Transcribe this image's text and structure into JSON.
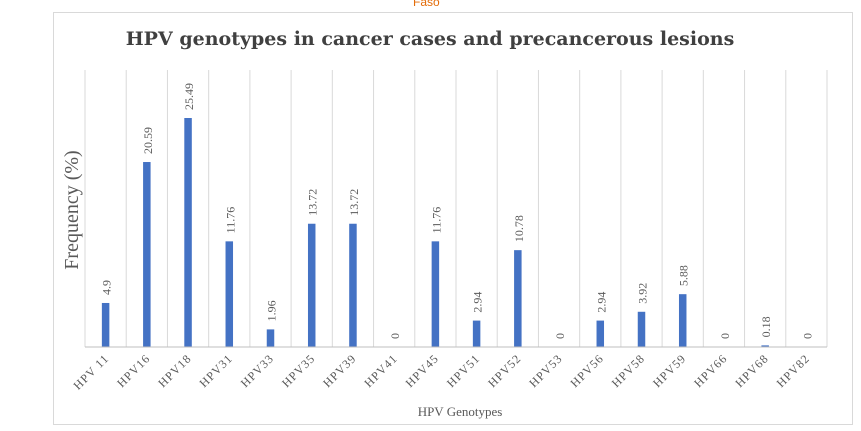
{
  "header_fragment": "Faso",
  "chart_data": {
    "type": "bar",
    "title": "HPV genotypes in cancer cases and precancerous lesions",
    "xlabel": "HPV Genotypes",
    "ylabel": "Frequency (%)",
    "categories": [
      "HPV 11",
      "HPV16",
      "HPV18",
      "HPV31",
      "HPV33",
      "HPV35",
      "HPV39",
      "HPV41",
      "HPV45",
      "HPV51",
      "HPV52",
      "HPV53",
      "HPV56",
      "HPV58",
      "HPV59",
      "HPV66",
      "HPV68",
      "HPV82"
    ],
    "values": [
      4.9,
      20.59,
      25.49,
      11.76,
      1.96,
      13.72,
      13.72,
      0,
      11.76,
      2.94,
      10.78,
      0,
      2.94,
      3.92,
      5.88,
      0,
      0.18,
      0
    ],
    "data_labels": [
      "4.9",
      "20.59",
      "25.49",
      "11.76",
      "1.96",
      "13.72",
      "13.72",
      "0",
      "11.76",
      "2.94",
      "10.78",
      "0",
      "2.94",
      "3.92",
      "5.88",
      "0",
      "0.18",
      "0"
    ],
    "ylim": [
      0,
      25.49
    ],
    "grid": "vertical",
    "legend": "none",
    "bar_color": "#4472c4",
    "title_color": "#404040",
    "label_color": "#595959",
    "grid_color": "#d9d9d9",
    "axis_color": "#bfbfbf"
  }
}
